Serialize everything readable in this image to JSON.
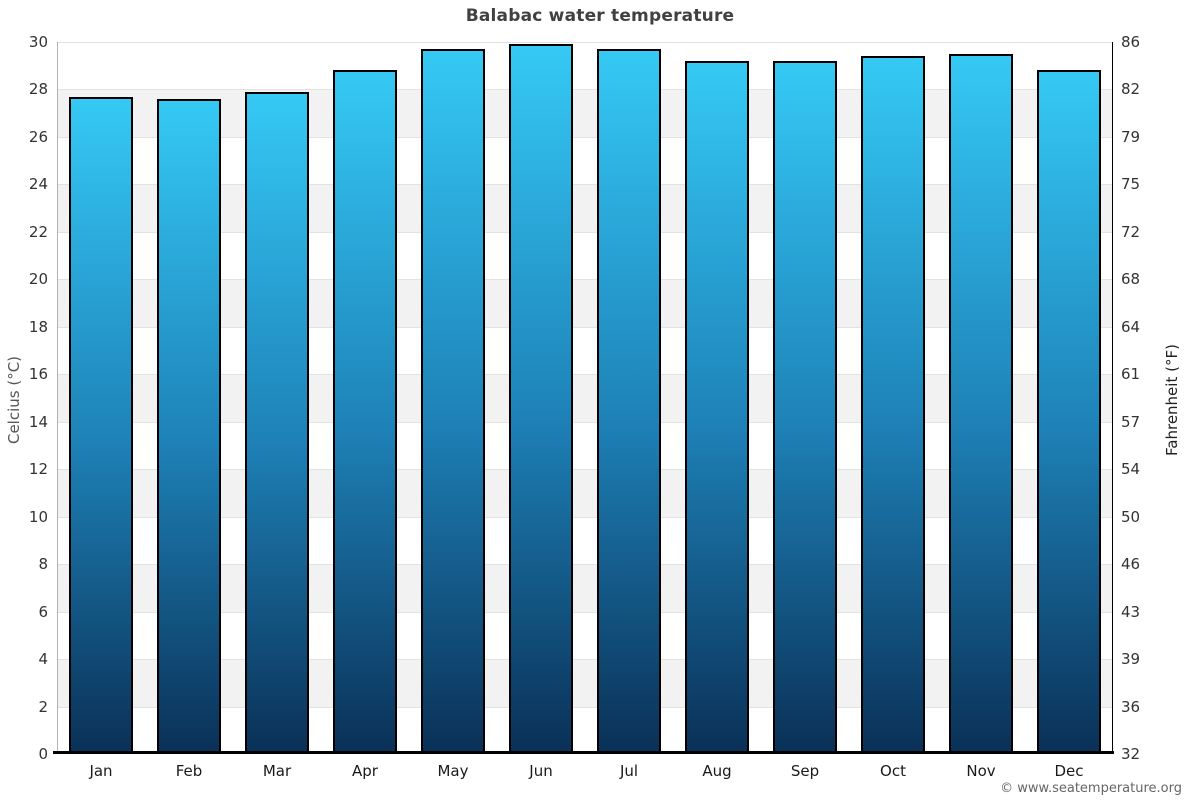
{
  "page": {
    "attribution": "© www.seatemperature.org"
  },
  "chart_data": {
    "type": "bar",
    "title": "Balabac water temperature",
    "categories": [
      "Jan",
      "Feb",
      "Mar",
      "Apr",
      "May",
      "Jun",
      "Jul",
      "Aug",
      "Sep",
      "Oct",
      "Nov",
      "Dec"
    ],
    "values": [
      27.7,
      27.6,
      27.9,
      28.8,
      29.7,
      29.9,
      29.7,
      29.2,
      29.2,
      29.4,
      29.5,
      28.8
    ],
    "ylabel_left": "Celcius (°C)",
    "ylabel_right": "Fahrenheit (°F)",
    "ylim": [
      0,
      30
    ],
    "yticks_celsius": [
      30,
      28,
      26,
      24,
      22,
      20,
      18,
      16,
      14,
      12,
      10,
      8,
      6,
      4,
      2,
      0
    ],
    "yticks_fahrenheit": [
      "86",
      "82",
      "79",
      "75",
      "72",
      "68",
      "64",
      "61",
      "57",
      "54",
      "50",
      "46",
      "43",
      "39",
      "36",
      "32"
    ],
    "grid": "horizontal-bands-alternating",
    "legend": "none",
    "colors": {
      "bar_gradient_top": "#35c9f4",
      "bar_gradient_mid": "#1e82b8",
      "bar_gradient_bottom": "#0a3056",
      "bar_border": "#000000",
      "band_alt": "#f2f2f2",
      "band_main": "#ffffff",
      "title_text": "#414141"
    }
  }
}
